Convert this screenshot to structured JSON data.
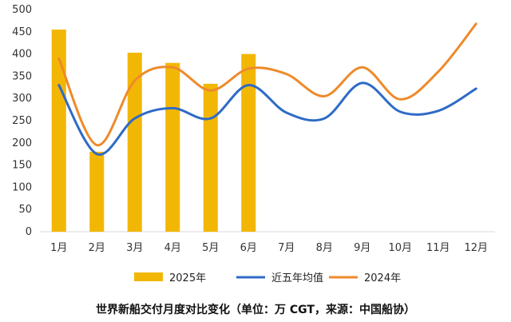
{
  "chart_data": {
    "type": "bar",
    "title": "世界新船交付月度对比变化（单位：万 CGT，来源：中国船协）",
    "categories": [
      "1月",
      "2月",
      "3月",
      "4月",
      "5月",
      "6月",
      "7月",
      "8月",
      "9月",
      "10月",
      "11月",
      "12月"
    ],
    "ylim": [
      0,
      500
    ],
    "yticks": [
      0,
      50,
      100,
      150,
      200,
      250,
      300,
      350,
      400,
      450,
      500
    ],
    "grid": false,
    "legend_position": "bottom",
    "series": [
      {
        "name": "2025年",
        "type": "bar",
        "color": "#F2B705",
        "values": [
          455,
          180,
          403,
          380,
          333,
          400,
          null,
          null,
          null,
          null,
          null,
          null
        ]
      },
      {
        "name": "近五年均值",
        "type": "line",
        "color": "#2E6BC6",
        "values": [
          330,
          175,
          255,
          278,
          255,
          330,
          268,
          255,
          335,
          270,
          272,
          322
        ]
      },
      {
        "name": "2024年",
        "type": "line",
        "color": "#EE8A2A",
        "values": [
          390,
          195,
          340,
          370,
          318,
          367,
          355,
          305,
          370,
          298,
          360,
          468
        ]
      }
    ]
  }
}
